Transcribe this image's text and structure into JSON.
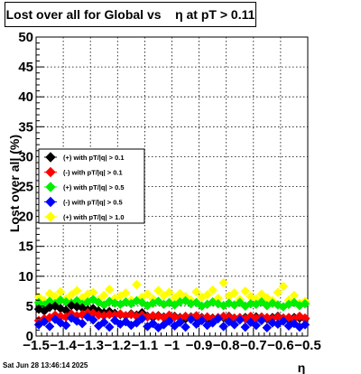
{
  "title": "Lost over all for Global vs    η at pT > 0.11",
  "timestamp": "Sat Jun 28 13:46:14 2025",
  "chart_data": {
    "type": "scatter",
    "title": "Lost over all for Global vs    η at pT > 0.11",
    "xlabel": "η",
    "ylabel": "Lost over all (%)",
    "xlim": [
      -1.5,
      -0.5
    ],
    "ylim": [
      0,
      50
    ],
    "x_ticks": [
      "−1.5",
      "−1.4",
      "−1.3",
      "−1.2",
      "−1.1",
      "−1",
      "−0.9",
      "−0.8",
      "−0.7",
      "−0.6",
      "−0.5"
    ],
    "y_ticks": [
      "0",
      "5",
      "10",
      "15",
      "20",
      "25",
      "30",
      "35",
      "40",
      "45",
      "50"
    ],
    "grid": true,
    "legend_position": "left-middle",
    "x": [
      -1.49,
      -1.47,
      -1.45,
      -1.43,
      -1.41,
      -1.39,
      -1.37,
      -1.35,
      -1.33,
      -1.31,
      -1.29,
      -1.27,
      -1.25,
      -1.23,
      -1.21,
      -1.19,
      -1.17,
      -1.15,
      -1.13,
      -1.11,
      -1.09,
      -1.07,
      -1.05,
      -1.03,
      -1.01,
      -0.99,
      -0.97,
      -0.95,
      -0.93,
      -0.91,
      -0.89,
      -0.87,
      -0.85,
      -0.83,
      -0.81,
      -0.79,
      -0.77,
      -0.75,
      -0.73,
      -0.71,
      -0.69,
      -0.67,
      -0.65,
      -0.63,
      -0.61,
      -0.59,
      -0.57,
      -0.55,
      -0.53,
      -0.51
    ],
    "series": [
      {
        "name": "(+) with pT/|q| > 0.1",
        "color": "#000000",
        "values": [
          4.5,
          4.2,
          4.8,
          5.0,
          4.6,
          4.3,
          5.1,
          4.9,
          4.7,
          4.4,
          4.6,
          4.2,
          3.9,
          4.1,
          3.8,
          3.6,
          3.4,
          3.7,
          3.5,
          3.9,
          3.3,
          3.1,
          3.4,
          3.2,
          3.0,
          3.3,
          3.1,
          2.9,
          3.2,
          3.0,
          3.1,
          2.8,
          3.0,
          2.9,
          3.1,
          3.3,
          3.0,
          2.8,
          3.1,
          2.9,
          3.2,
          3.0,
          2.9,
          3.1,
          3.3,
          3.0,
          2.8,
          3.1,
          3.0,
          2.9
        ]
      },
      {
        "name": "(-) with pT/|q| > 0.1",
        "color": "#ff0000",
        "values": [
          2.6,
          2.9,
          3.1,
          3.5,
          3.3,
          3.2,
          3.7,
          3.4,
          3.6,
          3.9,
          3.8,
          3.5,
          3.4,
          3.6,
          3.5,
          3.7,
          3.4,
          3.6,
          3.3,
          3.5,
          3.2,
          3.4,
          3.3,
          3.1,
          3.5,
          3.2,
          3.0,
          3.3,
          3.1,
          3.4,
          3.0,
          3.2,
          2.9,
          3.1,
          3.3,
          3.2,
          3.0,
          3.1,
          2.9,
          3.3,
          3.0,
          3.2,
          3.1,
          2.9,
          3.2,
          3.0,
          3.1,
          2.9,
          3.3,
          3.0
        ]
      },
      {
        "name": "(+) with pT/|q| > 0.5",
        "color": "#00ee00",
        "values": [
          5.6,
          5.2,
          5.8,
          5.4,
          6.0,
          5.7,
          5.5,
          5.9,
          5.3,
          5.7,
          6.1,
          5.6,
          5.2,
          5.8,
          5.5,
          5.3,
          5.7,
          5.4,
          5.9,
          5.6,
          5.1,
          5.5,
          5.8,
          5.3,
          5.6,
          5.2,
          5.7,
          5.9,
          5.4,
          5.6,
          5.0,
          5.3,
          5.7,
          5.4,
          5.1,
          5.5,
          5.2,
          5.6,
          5.0,
          5.4,
          5.3,
          5.7,
          5.1,
          5.5,
          5.2,
          4.9,
          5.3,
          5.6,
          5.1,
          5.4
        ]
      },
      {
        "name": "(-) with pT/|q| > 0.5",
        "color": "#0000ff",
        "values": [
          1.9,
          2.4,
          1.6,
          2.8,
          2.2,
          1.8,
          3.0,
          2.5,
          2.1,
          3.2,
          2.7,
          1.7,
          2.3,
          1.5,
          2.6,
          2.0,
          2.4,
          1.8,
          2.2,
          2.9,
          1.6,
          2.1,
          1.4,
          1.9,
          2.5,
          1.7,
          2.3,
          1.5,
          2.8,
          2.0,
          2.6,
          1.8,
          2.2,
          2.9,
          1.6,
          2.4,
          1.9,
          2.7,
          1.5,
          2.3,
          1.8,
          2.6,
          1.4,
          2.2,
          2.0,
          2.5,
          1.7,
          2.1,
          1.5,
          1.9
        ]
      },
      {
        "name": "(+) with pT/|q| > 1.0",
        "color": "#ffff00",
        "values": [
          6.5,
          5.9,
          7.1,
          6.6,
          7.4,
          6.2,
          6.9,
          7.6,
          6.4,
          7.0,
          7.3,
          6.1,
          6.8,
          7.8,
          6.3,
          6.7,
          7.2,
          6.0,
          8.6,
          6.5,
          7.0,
          6.2,
          7.6,
          6.8,
          7.3,
          6.4,
          7.1,
          6.6,
          6.0,
          7.4,
          6.5,
          6.9,
          7.7,
          6.3,
          8.9,
          6.7,
          7.2,
          6.1,
          7.5,
          6.6,
          6.2,
          7.0,
          6.4,
          5.9,
          7.3,
          8.3,
          6.0,
          6.8,
          5.5,
          5.8
        ]
      }
    ]
  }
}
